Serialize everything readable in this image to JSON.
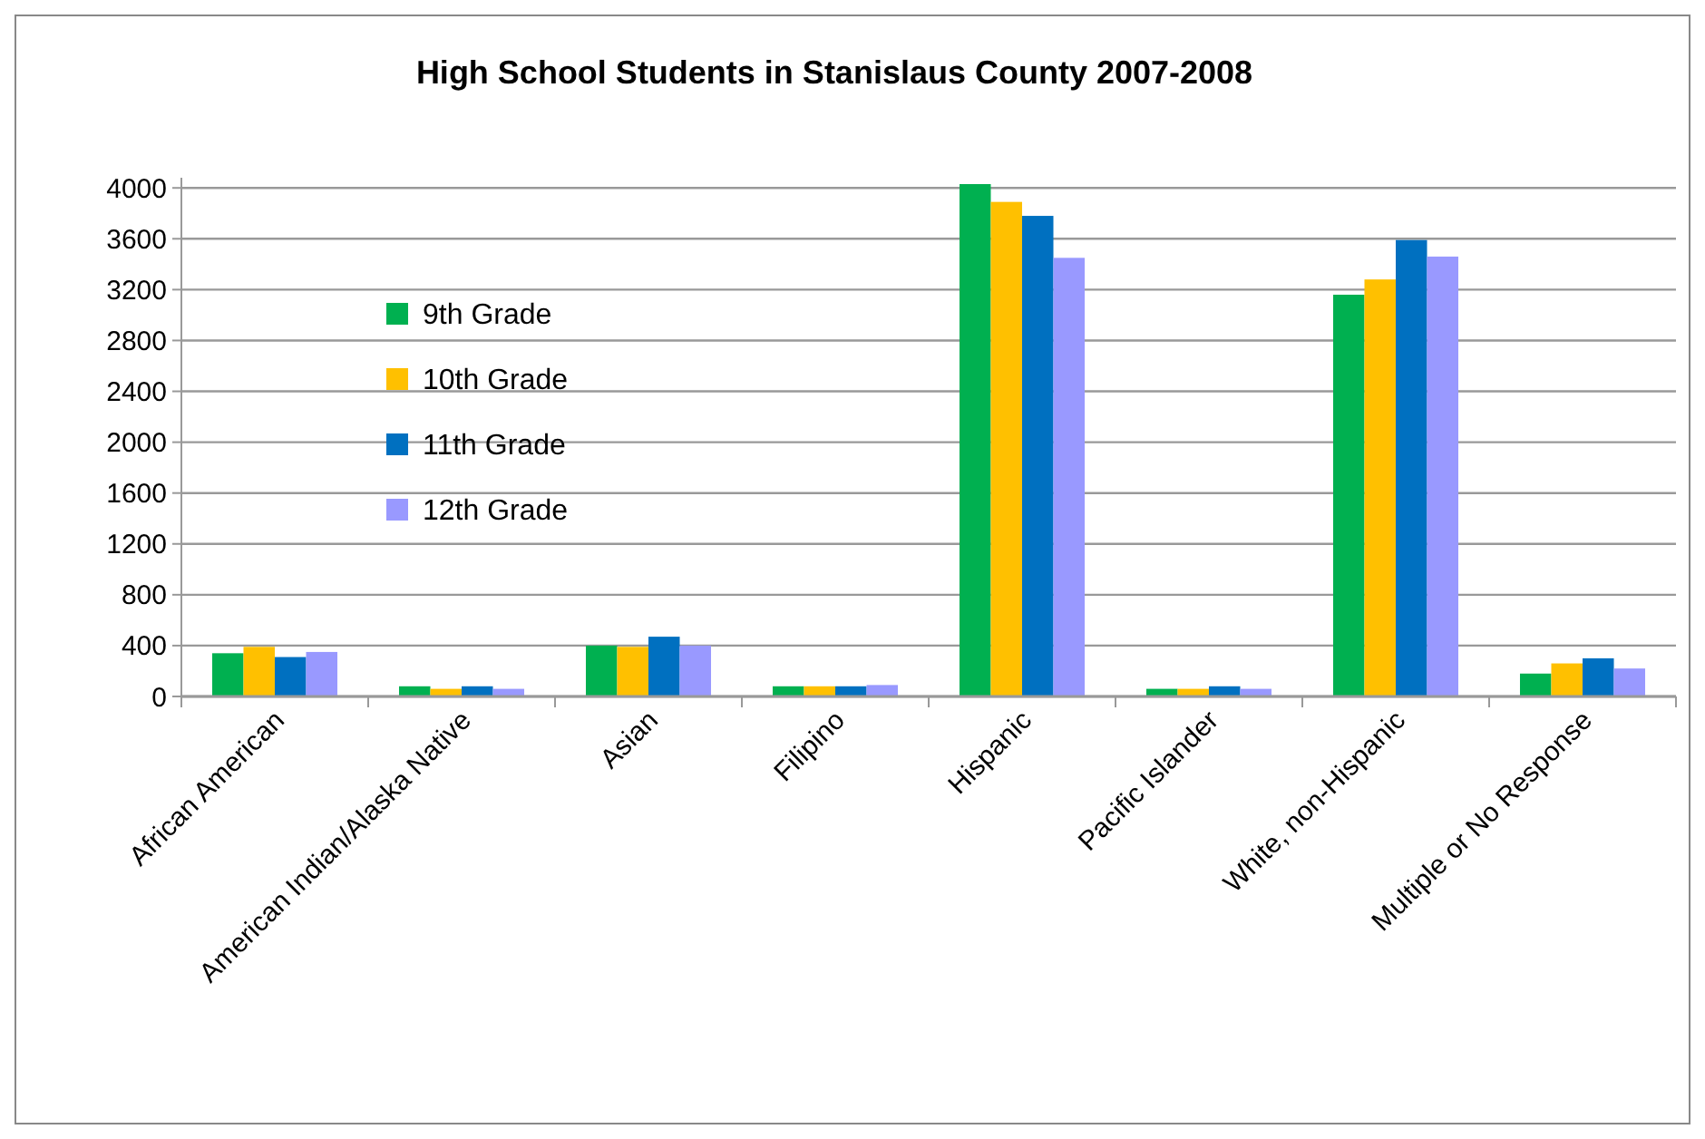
{
  "chart_data": {
    "type": "bar",
    "title": "High School Students in Stanislaus County 2007-2008",
    "categories": [
      "African American",
      "American Indian/Alaska Native",
      "Asian",
      "Filipino",
      "Hispanic",
      "Pacific Islander",
      "White, non-Hispanic",
      "Multiple or No Response"
    ],
    "series": [
      {
        "name": "9th Grade",
        "color": "#00b050",
        "values": [
          340,
          80,
          400,
          80,
          4030,
          60,
          3160,
          180
        ]
      },
      {
        "name": "10th Grade",
        "color": "#ffc000",
        "values": [
          390,
          60,
          390,
          80,
          3890,
          60,
          3280,
          260
        ]
      },
      {
        "name": "11th Grade",
        "color": "#0070c0",
        "values": [
          310,
          80,
          470,
          80,
          3780,
          80,
          3590,
          300
        ]
      },
      {
        "name": "12th Grade",
        "color": "#9999ff",
        "values": [
          350,
          60,
          400,
          90,
          3450,
          60,
          3460,
          220
        ]
      }
    ],
    "ylim": [
      0,
      4080
    ],
    "yticks": [
      0,
      400,
      800,
      1200,
      1600,
      2000,
      2400,
      2800,
      3200,
      3600,
      4000
    ],
    "grid": "y",
    "legend": "left"
  }
}
